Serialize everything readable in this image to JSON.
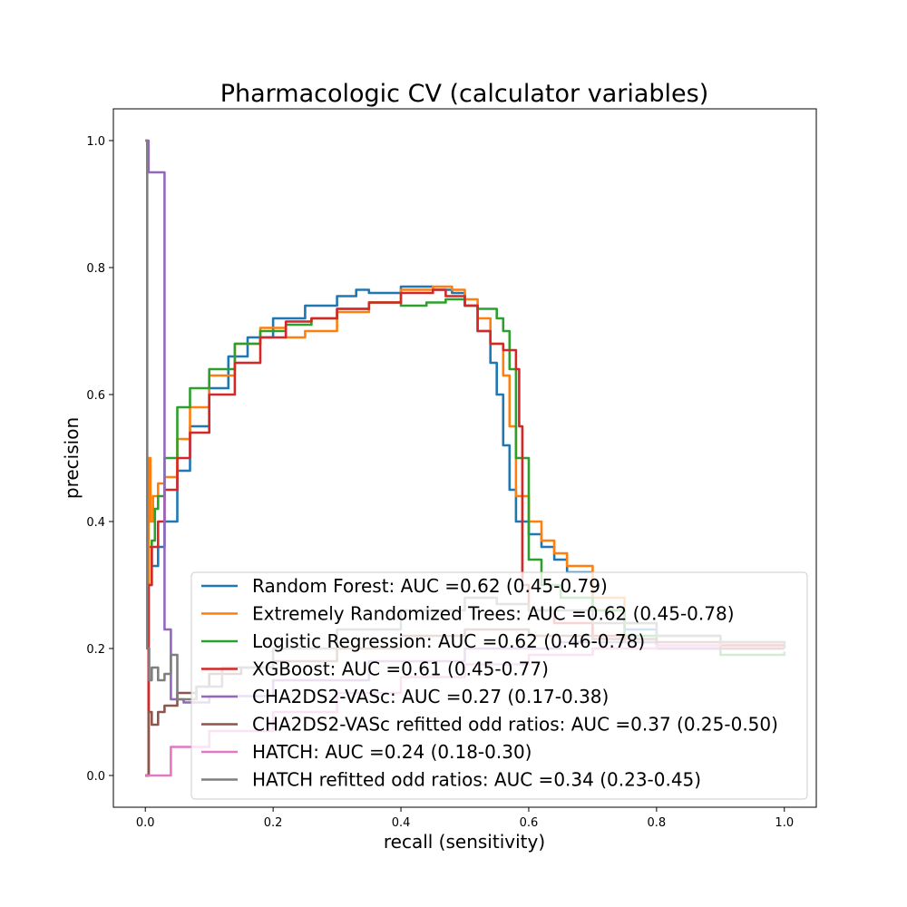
{
  "chart_data": {
    "type": "line",
    "title": "Pharmacologic CV (calculator variables)",
    "xlabel": "recall (sensitivity)",
    "ylabel": "precision",
    "xlim": [
      -0.05,
      1.05
    ],
    "ylim": [
      -0.05,
      1.05
    ],
    "xticks": [
      "0.0",
      "0.2",
      "0.4",
      "0.6",
      "0.8",
      "1.0"
    ],
    "yticks": [
      "0.0",
      "0.2",
      "0.4",
      "0.6",
      "0.8",
      "1.0"
    ],
    "grid": false,
    "legend_position": "lower-right",
    "series": [
      {
        "name": "Random Forest: AUC =0.62 (0.45-0.79)",
        "color": "#1f77b4",
        "x": [
          0.0,
          0.005,
          0.01,
          0.02,
          0.03,
          0.05,
          0.07,
          0.1,
          0.13,
          0.16,
          0.2,
          0.25,
          0.3,
          0.33,
          0.35,
          0.4,
          0.45,
          0.48,
          0.5,
          0.52,
          0.54,
          0.55,
          0.56,
          0.57,
          0.58,
          0.6,
          0.62,
          0.64,
          0.66,
          0.7,
          0.75,
          0.8,
          0.9,
          1.0
        ],
        "y": [
          0.0,
          0.36,
          0.33,
          0.36,
          0.4,
          0.48,
          0.55,
          0.61,
          0.66,
          0.69,
          0.72,
          0.74,
          0.755,
          0.765,
          0.76,
          0.77,
          0.765,
          0.76,
          0.74,
          0.7,
          0.65,
          0.6,
          0.52,
          0.45,
          0.4,
          0.38,
          0.36,
          0.34,
          0.32,
          0.26,
          0.23,
          0.22,
          0.21,
          0.2
        ]
      },
      {
        "name": "Extremely Randomized Trees: AUC =0.62 (0.45-0.78)",
        "color": "#ff7f0e",
        "x": [
          0.0,
          0.005,
          0.008,
          0.012,
          0.02,
          0.03,
          0.05,
          0.07,
          0.1,
          0.14,
          0.18,
          0.22,
          0.25,
          0.3,
          0.35,
          0.4,
          0.45,
          0.48,
          0.5,
          0.52,
          0.54,
          0.56,
          0.57,
          0.58,
          0.6,
          0.62,
          0.64,
          0.66,
          0.7,
          0.75,
          0.8,
          0.9,
          1.0
        ],
        "y": [
          0.0,
          0.5,
          0.4,
          0.44,
          0.46,
          0.47,
          0.53,
          0.58,
          0.63,
          0.68,
          0.705,
          0.69,
          0.7,
          0.73,
          0.745,
          0.765,
          0.77,
          0.765,
          0.75,
          0.72,
          0.68,
          0.63,
          0.55,
          0.44,
          0.4,
          0.37,
          0.35,
          0.33,
          0.28,
          0.24,
          0.22,
          0.21,
          0.2
        ]
      },
      {
        "name": "Logistic Regression: AUC =0.62 (0.46-0.78)",
        "color": "#2ca02c",
        "x": [
          0.0,
          0.005,
          0.01,
          0.015,
          0.02,
          0.03,
          0.05,
          0.07,
          0.1,
          0.14,
          0.18,
          0.22,
          0.26,
          0.3,
          0.35,
          0.4,
          0.44,
          0.47,
          0.5,
          0.52,
          0.55,
          0.56,
          0.57,
          0.58,
          0.6,
          0.62,
          0.65,
          0.7,
          0.75,
          0.8,
          0.9,
          1.0
        ],
        "y": [
          0.0,
          0.3,
          0.37,
          0.42,
          0.44,
          0.5,
          0.58,
          0.61,
          0.64,
          0.68,
          0.7,
          0.71,
          0.72,
          0.735,
          0.745,
          0.74,
          0.745,
          0.75,
          0.74,
          0.735,
          0.72,
          0.7,
          0.64,
          0.5,
          0.34,
          0.3,
          0.28,
          0.26,
          0.22,
          0.2,
          0.19,
          0.195
        ]
      },
      {
        "name": "XGBoost: AUC =0.61 (0.45-0.77)",
        "color": "#d62728",
        "x": [
          0.0,
          0.005,
          0.01,
          0.02,
          0.03,
          0.05,
          0.07,
          0.1,
          0.14,
          0.18,
          0.22,
          0.26,
          0.3,
          0.35,
          0.4,
          0.45,
          0.47,
          0.5,
          0.52,
          0.54,
          0.56,
          0.58,
          0.585,
          0.59,
          0.6,
          0.64,
          0.7,
          0.75,
          0.8,
          0.9,
          1.0
        ],
        "y": [
          0.0,
          0.3,
          0.36,
          0.4,
          0.45,
          0.5,
          0.54,
          0.6,
          0.65,
          0.69,
          0.715,
          0.72,
          0.735,
          0.745,
          0.76,
          0.765,
          0.755,
          0.74,
          0.7,
          0.68,
          0.67,
          0.64,
          0.55,
          0.3,
          0.26,
          0.24,
          0.22,
          0.21,
          0.2,
          0.205,
          0.2
        ]
      },
      {
        "name": "CHA2DS2-VASc: AUC =0.27 (0.17-0.38)",
        "color": "#9467bd",
        "x": [
          0.0,
          0.005,
          0.03,
          0.04,
          0.06,
          0.1,
          0.2,
          0.35,
          0.5,
          0.65,
          0.8,
          0.9,
          1.0
        ],
        "y": [
          1.0,
          0.95,
          0.23,
          0.12,
          0.115,
          0.125,
          0.15,
          0.18,
          0.2,
          0.21,
          0.2,
          0.2,
          0.2
        ]
      },
      {
        "name": "CHA2DS2-VASc refitted odd ratios: AUC =0.37 (0.25-0.50)",
        "color": "#8c564b",
        "x": [
          0.0,
          0.005,
          0.01,
          0.02,
          0.03,
          0.05,
          0.08,
          0.1,
          0.15,
          0.2,
          0.3,
          0.4,
          0.5,
          0.6,
          0.7,
          0.8,
          0.9,
          1.0
        ],
        "y": [
          0.0,
          0.1,
          0.08,
          0.1,
          0.11,
          0.13,
          0.14,
          0.16,
          0.17,
          0.18,
          0.2,
          0.22,
          0.23,
          0.22,
          0.215,
          0.21,
          0.2,
          0.2
        ]
      },
      {
        "name": "HATCH: AUC =0.24 (0.18-0.30)",
        "color": "#e377c2",
        "x": [
          0.0,
          0.04,
          0.1,
          0.2,
          0.3,
          0.4,
          0.5,
          0.6,
          0.7,
          0.8,
          0.9,
          1.0
        ],
        "y": [
          0.0,
          0.045,
          0.07,
          0.1,
          0.13,
          0.155,
          0.175,
          0.19,
          0.2,
          0.205,
          0.21,
          0.2
        ]
      },
      {
        "name": "HATCH refitted odd ratios: AUC =0.34 (0.23-0.45)",
        "color": "#7f7f7f",
        "x": [
          0.0,
          0.003,
          0.006,
          0.01,
          0.02,
          0.03,
          0.04,
          0.05,
          0.08,
          0.12,
          0.2,
          0.3,
          0.4,
          0.5,
          0.55,
          0.6,
          0.7,
          0.8,
          0.9,
          1.0
        ],
        "y": [
          1.0,
          0.2,
          0.15,
          0.17,
          0.15,
          0.16,
          0.19,
          0.12,
          0.14,
          0.17,
          0.2,
          0.23,
          0.26,
          0.28,
          0.27,
          0.26,
          0.24,
          0.22,
          0.21,
          0.2
        ]
      }
    ]
  }
}
